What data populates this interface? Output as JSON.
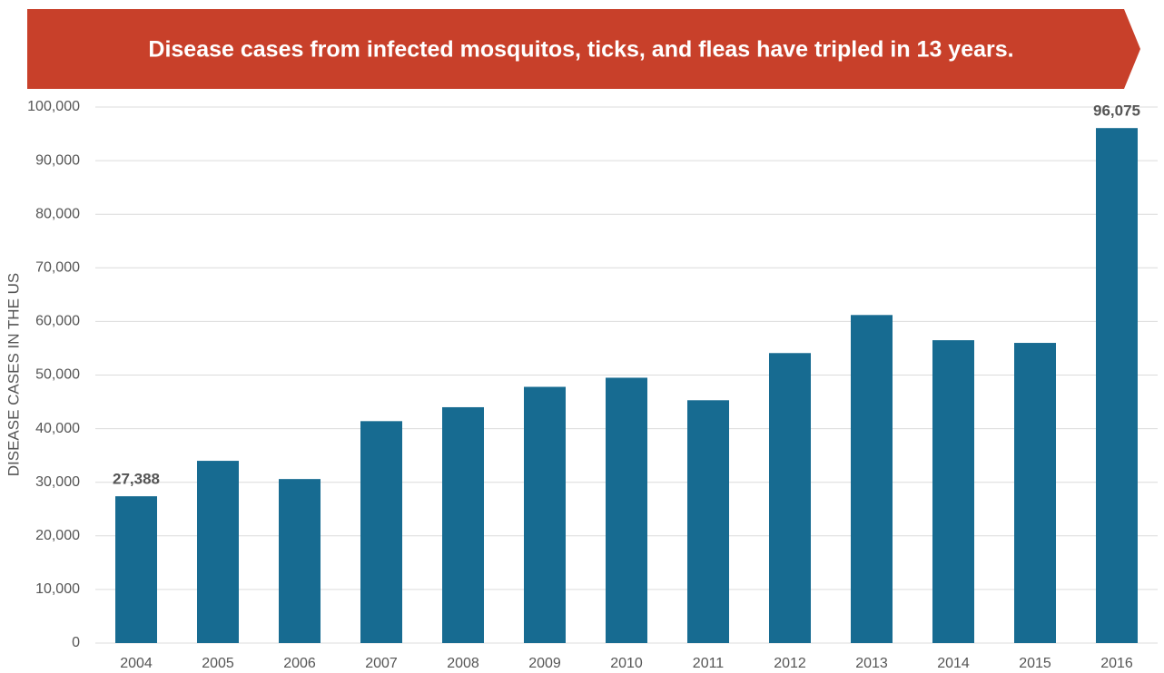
{
  "chart_data": {
    "type": "bar",
    "title": "Disease cases from infected mosquitos, ticks, and fleas have tripled in 13 years.",
    "y_label": "DISEASE CASES IN THE US",
    "categories": [
      "2004",
      "2005",
      "2006",
      "2007",
      "2008",
      "2009",
      "2010",
      "2011",
      "2012",
      "2013",
      "2014",
      "2015",
      "2016"
    ],
    "values": [
      27388,
      34000,
      30600,
      41400,
      44000,
      47800,
      49500,
      45300,
      54100,
      61200,
      56500,
      56000,
      96075
    ],
    "value_labels": [
      "27,388",
      null,
      null,
      null,
      null,
      null,
      null,
      null,
      null,
      null,
      null,
      null,
      "96,075"
    ],
    "color": "#176b91",
    "ylim": [
      0,
      100000
    ],
    "yticks": [
      0,
      {
        "value": 10000,
        "label": "10,000"
      },
      {
        "value": 20000,
        "label": "20,000"
      },
      {
        "value": 30000,
        "label": "30,000"
      },
      {
        "value": 40000,
        "label": "40,000"
      },
      {
        "value": 50000,
        "label": "50,000"
      },
      {
        "value": 60000,
        "label": "60,000"
      },
      {
        "value": 70000,
        "label": "70,000"
      },
      {
        "value": 80000,
        "label": "80,000"
      },
      {
        "value": 90000,
        "label": "90,000"
      },
      {
        "value": 100000,
        "label": "100,000"
      }
    ],
    "grid": true
  }
}
